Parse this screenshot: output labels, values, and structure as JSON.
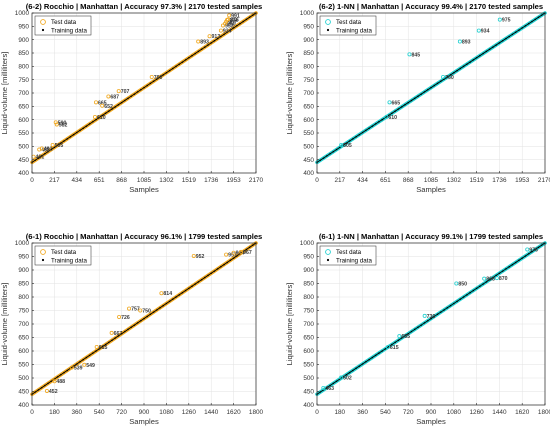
{
  "figure": {
    "legend": {
      "test_label": "Test data",
      "train_label": "Training data"
    }
  },
  "chart_data": [
    {
      "id": "p1",
      "type": "scatter",
      "title": "(6-2) Rocchio | Manhattan | Accuracy 97.3% | 2170 tested samples",
      "xlabel": "Samples",
      "ylabel": "Liquid-volume [milliliters]",
      "xlim": [
        0,
        2170
      ],
      "ylim": [
        400,
        1000
      ],
      "xticks": [
        0,
        217,
        434,
        651,
        868,
        1085,
        1302,
        1519,
        1736,
        1953,
        2170
      ],
      "yticks": [
        400,
        450,
        500,
        550,
        600,
        650,
        700,
        750,
        800,
        850,
        900,
        950,
        1000
      ],
      "grid": true,
      "legend_position": "top-left",
      "test_color": "#f0a820",
      "train_color": "#000000",
      "training_line": {
        "x": [
          0,
          2170
        ],
        "y": [
          440,
          1000
        ]
      },
      "annotations": [
        {
          "x": 15,
          "y": 461,
          "label": "461"
        },
        {
          "x": 70,
          "y": 488,
          "label": "488"
        },
        {
          "x": 95,
          "y": 492,
          "label": "492"
        },
        {
          "x": 240,
          "y": 582,
          "label": "582"
        },
        {
          "x": 230,
          "y": 590,
          "label": "590"
        },
        {
          "x": 200,
          "y": 505,
          "label": "505"
        },
        {
          "x": 610,
          "y": 610,
          "label": "610"
        },
        {
          "x": 620,
          "y": 665,
          "label": "665"
        },
        {
          "x": 680,
          "y": 652,
          "label": "652"
        },
        {
          "x": 840,
          "y": 707,
          "label": "707"
        },
        {
          "x": 740,
          "y": 687,
          "label": "687"
        },
        {
          "x": 1160,
          "y": 760,
          "label": "760"
        },
        {
          "x": 1610,
          "y": 893,
          "label": "893"
        },
        {
          "x": 1720,
          "y": 913,
          "label": "913"
        },
        {
          "x": 1830,
          "y": 934,
          "label": "934"
        },
        {
          "x": 1850,
          "y": 953,
          "label": "953"
        },
        {
          "x": 1870,
          "y": 960,
          "label": "960"
        },
        {
          "x": 1880,
          "y": 967,
          "label": "967"
        },
        {
          "x": 1890,
          "y": 974,
          "label": "974"
        },
        {
          "x": 1900,
          "y": 976,
          "label": "976"
        },
        {
          "x": 1910,
          "y": 991,
          "label": "991"
        }
      ]
    },
    {
      "id": "p2",
      "type": "scatter",
      "title": "(6-2) 1-NN | Manhattan | Accuracy 99.4% | 2170 tested samples",
      "xlabel": "Samples",
      "ylabel": "Liquid-volume [milliliters]",
      "xlim": [
        0,
        2170
      ],
      "ylim": [
        400,
        1000
      ],
      "xticks": [
        0,
        217,
        434,
        651,
        868,
        1085,
        1302,
        1519,
        1736,
        1953,
        2170
      ],
      "yticks": [
        400,
        450,
        500,
        550,
        600,
        650,
        700,
        750,
        800,
        850,
        900,
        950,
        1000
      ],
      "grid": true,
      "legend_position": "top-left",
      "test_color": "#22d0d0",
      "train_color": "#000000",
      "training_line": {
        "x": [
          0,
          2170
        ],
        "y": [
          440,
          1000
        ]
      },
      "annotations": [
        {
          "x": 230,
          "y": 505,
          "label": "505"
        },
        {
          "x": 660,
          "y": 610,
          "label": "610"
        },
        {
          "x": 690,
          "y": 665,
          "label": "665"
        },
        {
          "x": 880,
          "y": 845,
          "label": "845"
        },
        {
          "x": 1200,
          "y": 760,
          "label": "760"
        },
        {
          "x": 1360,
          "y": 893,
          "label": "893"
        },
        {
          "x": 1540,
          "y": 934,
          "label": "934"
        },
        {
          "x": 1740,
          "y": 975,
          "label": "975"
        }
      ]
    },
    {
      "id": "p3",
      "type": "scatter",
      "title": "(6-1) Rocchio | Manhattan | Accuracy 96.1% | 1799 tested samples",
      "xlabel": "Samples",
      "ylabel": "Liquid-volume [milliliters]",
      "xlim": [
        0,
        1800
      ],
      "ylim": [
        400,
        1000
      ],
      "xticks": [
        0,
        180,
        360,
        540,
        720,
        900,
        1080,
        1260,
        1440,
        1620,
        1800
      ],
      "yticks": [
        400,
        450,
        500,
        550,
        600,
        650,
        700,
        750,
        800,
        850,
        900,
        950,
        1000
      ],
      "grid": true,
      "legend_position": "top-left",
      "test_color": "#f0a820",
      "train_color": "#000000",
      "training_line": {
        "x": [
          0,
          1800
        ],
        "y": [
          440,
          1000
        ]
      },
      "annotations": [
        {
          "x": 120,
          "y": 452,
          "label": "452"
        },
        {
          "x": 180,
          "y": 488,
          "label": "488"
        },
        {
          "x": 320,
          "y": 539,
          "label": "539"
        },
        {
          "x": 420,
          "y": 549,
          "label": "549"
        },
        {
          "x": 520,
          "y": 615,
          "label": "615"
        },
        {
          "x": 640,
          "y": 667,
          "label": "667"
        },
        {
          "x": 700,
          "y": 726,
          "label": "726"
        },
        {
          "x": 780,
          "y": 757,
          "label": "757"
        },
        {
          "x": 870,
          "y": 750,
          "label": "750"
        },
        {
          "x": 1040,
          "y": 814,
          "label": "814"
        },
        {
          "x": 1300,
          "y": 952,
          "label": "952"
        },
        {
          "x": 1560,
          "y": 957,
          "label": "957"
        },
        {
          "x": 1620,
          "y": 964,
          "label": "964"
        },
        {
          "x": 1680,
          "y": 967,
          "label": "967"
        }
      ]
    },
    {
      "id": "p4",
      "type": "scatter",
      "title": "(6-1) 1-NN | Manhattan | Accuracy 99.1% | 1799 tested samples",
      "xlabel": "Samples",
      "ylabel": "Liquid-volume [milliliters]",
      "xlim": [
        0,
        1800
      ],
      "ylim": [
        400,
        1000
      ],
      "xticks": [
        0,
        180,
        360,
        540,
        720,
        900,
        1080,
        1260,
        1440,
        1620,
        1800
      ],
      "yticks": [
        400,
        450,
        500,
        550,
        600,
        650,
        700,
        750,
        800,
        850,
        900,
        950,
        1000
      ],
      "grid": true,
      "legend_position": "top-left",
      "test_color": "#22d0d0",
      "train_color": "#000000",
      "training_line": {
        "x": [
          0,
          1800
        ],
        "y": [
          440,
          1000
        ]
      },
      "annotations": [
        {
          "x": 50,
          "y": 463,
          "label": "463"
        },
        {
          "x": 190,
          "y": 502,
          "label": "502"
        },
        {
          "x": 560,
          "y": 615,
          "label": "615"
        },
        {
          "x": 650,
          "y": 655,
          "label": "655"
        },
        {
          "x": 850,
          "y": 730,
          "label": "730"
        },
        {
          "x": 1100,
          "y": 850,
          "label": "850"
        },
        {
          "x": 1320,
          "y": 868,
          "label": "868"
        },
        {
          "x": 1420,
          "y": 870,
          "label": "870"
        },
        {
          "x": 1660,
          "y": 976,
          "label": "976"
        }
      ]
    }
  ]
}
